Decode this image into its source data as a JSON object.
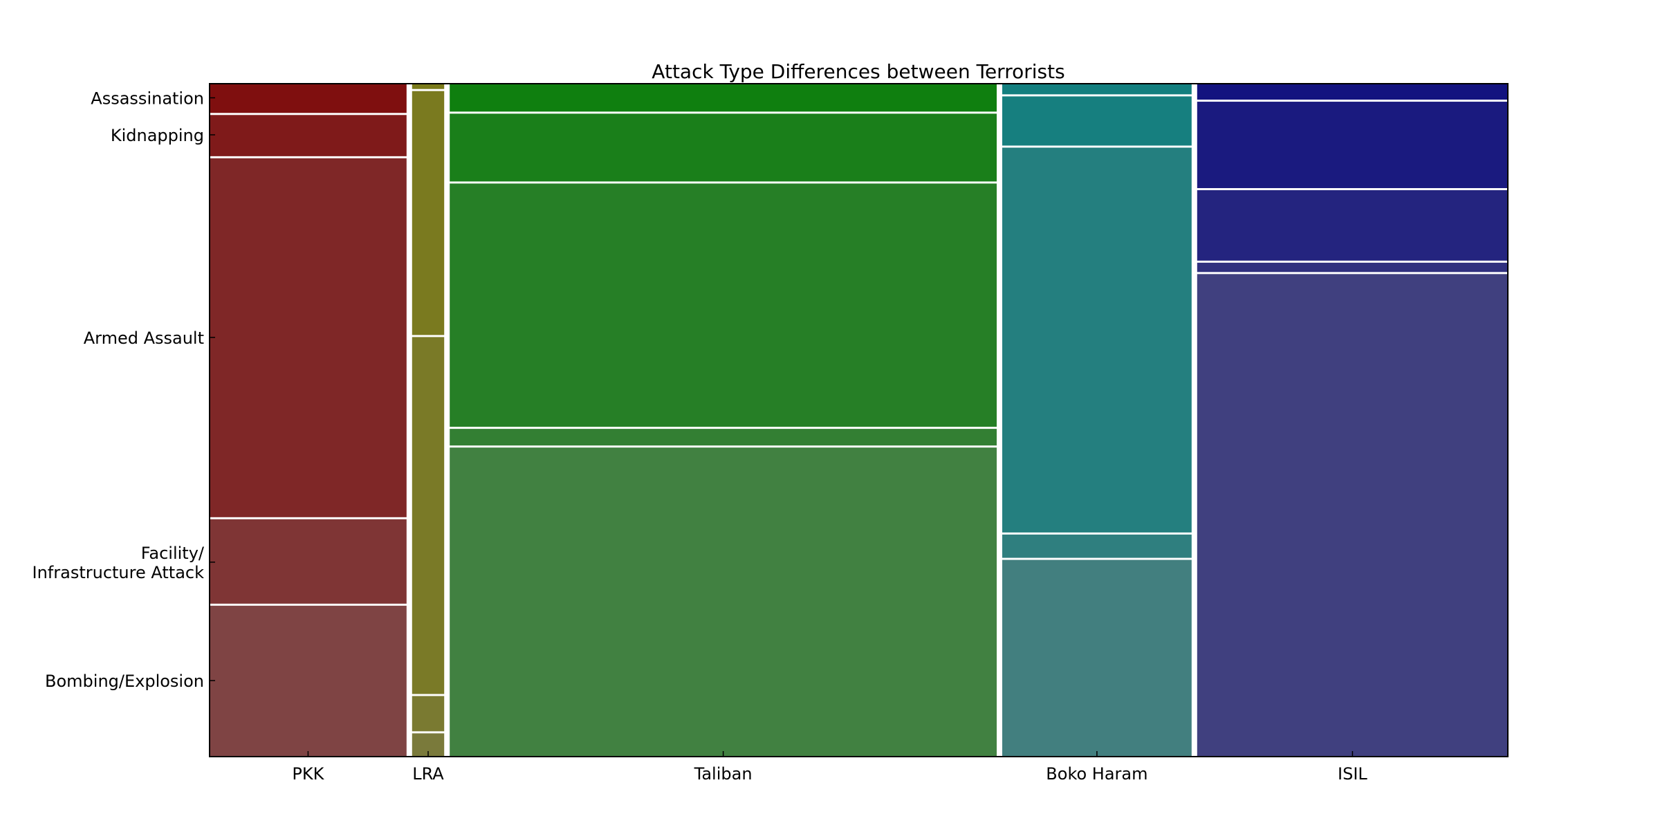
{
  "chart_data": {
    "type": "mosaic",
    "title": "Attack Type Differences between Terrorists",
    "xlabel": "",
    "ylabel": "",
    "groups": [
      "PKK",
      "LRA",
      "Taliban",
      "Boko Haram",
      "ISIL"
    ],
    "group_shares": [
      0.1528,
      0.0249,
      0.4243,
      0.1469,
      0.241
    ],
    "categories": [
      "Assassination",
      "Kidnapping",
      "Armed Assault",
      "Facility/ Infrastructure Attack",
      "Bombing/Explosion"
    ],
    "segments_order": "top-to-bottom",
    "series": [
      {
        "group": "PKK",
        "colors": [
          "#7f0f0f",
          "#7f1a1a",
          "#7f2727",
          "#7f3535",
          "#7f4444"
        ],
        "shares": [
          0.044,
          0.062,
          0.54,
          0.127,
          0.227
        ]
      },
      {
        "group": "LRA",
        "colors": [
          "#7a7a1a",
          "#7a7a1f",
          "#7a7a27",
          "#7a7a31",
          "#7a7a3b"
        ],
        "shares": [
          0.008,
          0.367,
          0.537,
          0.053,
          0.035
        ]
      },
      {
        "group": "Taliban",
        "colors": [
          "#0f7f0f",
          "#1a7f1a",
          "#267f26",
          "#337f33",
          "#418141"
        ],
        "shares": [
          0.042,
          0.102,
          0.366,
          0.025,
          0.465
        ]
      },
      {
        "group": "Boko Haram",
        "colors": [
          "#137f7f",
          "#167f7f",
          "#247f7f",
          "#2f7f7f",
          "#427f7f"
        ],
        "shares": [
          0.016,
          0.074,
          0.579,
          0.035,
          0.296
        ]
      },
      {
        "group": "ISIL",
        "colors": [
          "#13137f",
          "#1a1a7f",
          "#24247f",
          "#30307f",
          "#40407f"
        ],
        "shares": [
          0.024,
          0.13,
          0.106,
          0.014,
          0.726
        ]
      }
    ],
    "y_tick_labels": [
      {
        "lines": [
          "Assassination"
        ],
        "pos": 0.979
      },
      {
        "lines": [
          "Kidnapping"
        ],
        "pos": 0.924
      },
      {
        "lines": [
          "Armed Assault"
        ],
        "pos": 0.623
      },
      {
        "lines": [
          "Facility/",
          "Infrastructure Attack"
        ],
        "pos": 0.289
      },
      {
        "lines": [
          "Bombing/Explosion"
        ],
        "pos": 0.113
      }
    ],
    "grid": false,
    "legend": "none"
  }
}
